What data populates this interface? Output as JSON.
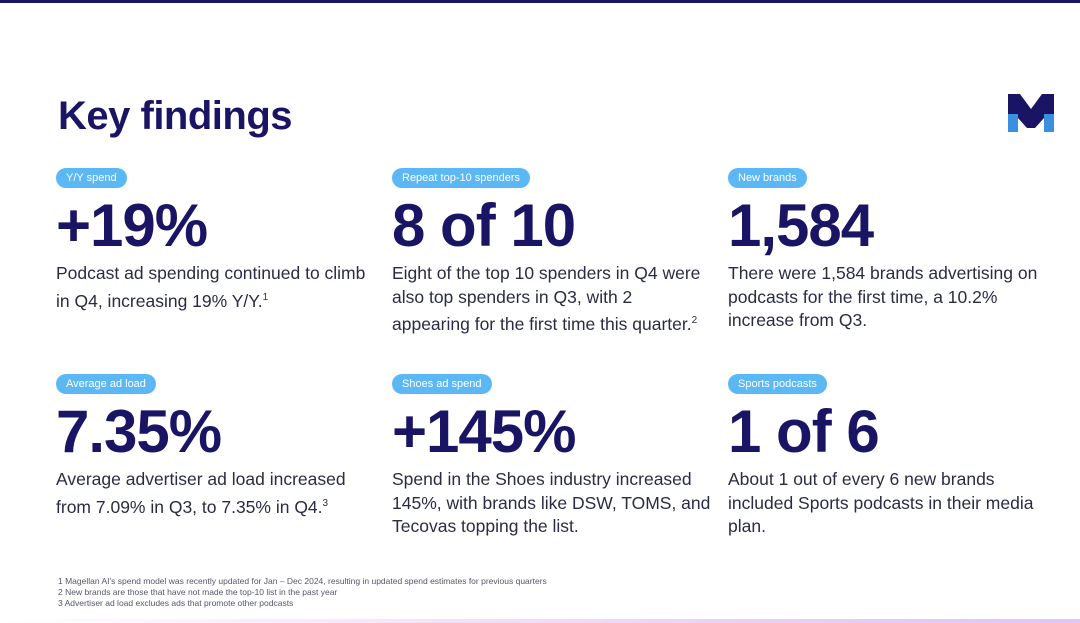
{
  "page": {
    "title": "Key findings"
  },
  "brand": {
    "logo_letter": "M",
    "primary_color": "#1a1464",
    "accent_color": "#5cb8f5"
  },
  "findings": [
    {
      "badge": "Y/Y spend",
      "stat": "+19%",
      "text": "Podcast ad spending continued to climb in Q4, increasing 19% Y/Y.",
      "note": "1"
    },
    {
      "badge": "Repeat top-10 spenders",
      "stat": "8 of 10",
      "text": "Eight of the top 10 spenders in Q4 were also top spenders in Q3, with 2 appearing for the first time this quarter.",
      "note": "2"
    },
    {
      "badge": "New brands",
      "stat": "1,584",
      "text": "There were 1,584 brands advertising on podcasts for the first time, a 10.2% increase from Q3.",
      "note": ""
    },
    {
      "badge": "Average ad load",
      "stat": "7.35%",
      "text": "Average advertiser ad load increased from 7.09% in Q3, to 7.35% in Q4.",
      "note": "3"
    },
    {
      "badge": "Shoes ad spend",
      "stat": "+145%",
      "text": "Spend in the Shoes industry increased 145%, with brands like DSW, TOMS, and Tecovas topping the list.",
      "note": ""
    },
    {
      "badge": "Sports podcasts",
      "stat": "1 of 6",
      "text": "About 1 out of every 6 new brands included Sports podcasts in their media plan.",
      "note": ""
    }
  ],
  "footnotes": [
    "1 Magellan AI's spend model was recently updated for Jan – Dec 2024, resulting in updated spend estimates for previous quarters",
    "2 New brands are those that have not made the top-10 list in the past year",
    "3 Advertiser ad load excludes ads that promote other podcasts"
  ]
}
